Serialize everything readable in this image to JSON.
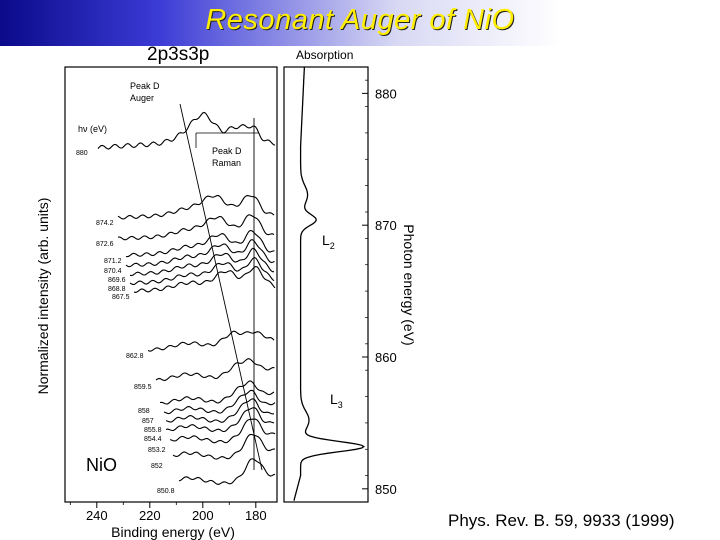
{
  "slide": {
    "title": "Resonant Auger of NiO",
    "citation": "Phys. Rev. B. 59, 9933 (1999)"
  },
  "figure": {
    "left_panel_title": "2p3s3p",
    "right_panel_title": "Absorption",
    "hv_label": "hν (eV)",
    "peak_auger": [
      "Peak D",
      "Auger"
    ],
    "peak_raman": [
      "Peak D",
      "Raman"
    ],
    "sample_label": "NiO",
    "L2_label": "L",
    "L2_sub": "2",
    "L3_label": "L",
    "L3_sub": "3"
  },
  "chart_data": [
    {
      "type": "line",
      "title": "2p3s3p",
      "xlabel": "Binding energy (eV)",
      "ylabel": "Normalized intensity (arb. units)",
      "x_ticks": [
        "240",
        "220",
        "200",
        "180"
      ],
      "xlim": [
        252,
        172
      ],
      "x_reversed": true,
      "series_labels": [
        "880",
        "874.2",
        "872.6",
        "871.2",
        "870.4",
        "869.6",
        "868.8",
        "867.5",
        "862.8",
        "859.5",
        "858",
        "857",
        "855.8",
        "854.4",
        "853.2",
        "852",
        "850.8"
      ],
      "series_photon_energy": [
        880,
        874.2,
        872.6,
        871.2,
        870.4,
        869.6,
        868.8,
        867.5,
        862.8,
        859.5,
        858,
        857,
        855.8,
        854.4,
        853.2,
        852,
        850.8
      ]
    },
    {
      "type": "line",
      "title": "Absorption",
      "ylabel": "Photon energy (eV)",
      "y_ticks": [
        "880",
        "870",
        "860",
        "850"
      ],
      "ylim": [
        849,
        882
      ],
      "peaks": [
        "L2",
        "L3"
      ]
    }
  ]
}
